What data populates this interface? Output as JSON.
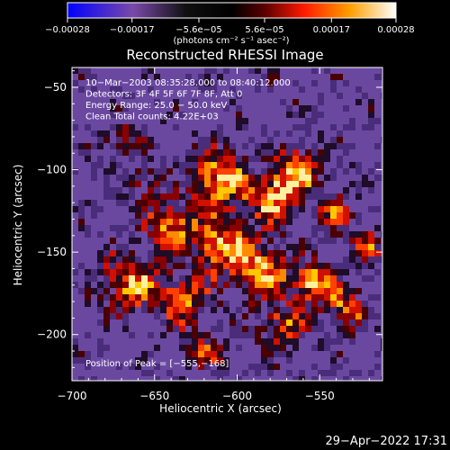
{
  "chart_data": {
    "type": "heatmap",
    "title": "Reconstructed RHESSI Image",
    "xlabel": "Heliocentric X (arcsec)",
    "ylabel": "Heliocentric Y (arcsec)",
    "xlim": [
      -700,
      -512
    ],
    "ylim": [
      -228,
      -38
    ],
    "x_ticks": [
      {
        "value": -700,
        "label": "−700"
      },
      {
        "value": -650,
        "label": "−650"
      },
      {
        "value": -600,
        "label": "−600"
      },
      {
        "value": -550,
        "label": "−550"
      }
    ],
    "y_ticks": [
      {
        "value": -50,
        "label": "−50"
      },
      {
        "value": -100,
        "label": "−100"
      },
      {
        "value": -150,
        "label": "−150"
      },
      {
        "value": -200,
        "label": "−200"
      }
    ],
    "colorbar": {
      "range": [
        -0.00028,
        0.00028
      ],
      "ticks": [
        {
          "value": -0.00028,
          "label": "−0.00028"
        },
        {
          "value": -0.00017,
          "label": "−0.00017"
        },
        {
          "value": -5.6e-05,
          "label": "−5.6e−05"
        },
        {
          "value": 5.6e-05,
          "label": "5.6e−05"
        },
        {
          "value": 0.00017,
          "label": "0.00017"
        },
        {
          "value": 0.00028,
          "label": "0.00028"
        }
      ],
      "units_label": "(photons cm⁻² s⁻¹ asec⁻²)"
    },
    "info_lines": [
      "10−Mar−2003 08:35:28.000 to 08:40:12.000",
      "Detectors: 3F 4F 5F 6F 7F 8F, Att 0",
      "Energy Range: 25.0 − 50.0 keV",
      "Clean     Total counts: 4.22E+03"
    ],
    "peak_label": "Position of Peak = [−555,−168]",
    "peak_position": [
      -555,
      -168
    ],
    "timestamp": "29−Apr−2022 17:31",
    "grid": false
  }
}
